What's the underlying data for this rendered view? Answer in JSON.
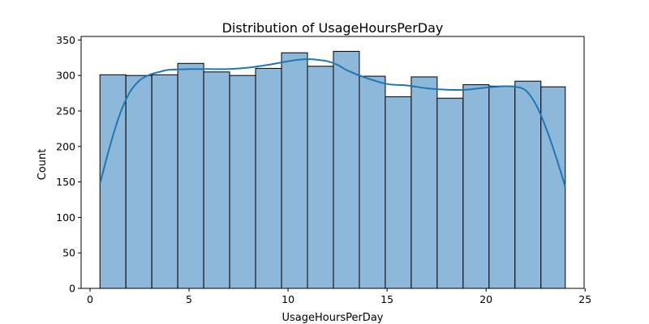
{
  "chart_data": {
    "type": "bar",
    "title": "Distribution of UsageHoursPerDay",
    "xlabel": "UsageHoursPerDay",
    "ylabel": "Count",
    "xlim": [
      -0.45,
      24.95
    ],
    "ylim": [
      0,
      355
    ],
    "xticks": [
      0,
      5,
      10,
      15,
      20,
      25
    ],
    "yticks": [
      0,
      50,
      100,
      150,
      200,
      250,
      300,
      350
    ],
    "bin_edges": [
      0.5,
      1.81,
      3.12,
      4.43,
      5.74,
      7.05,
      8.36,
      9.67,
      10.98,
      12.29,
      13.6,
      14.91,
      16.22,
      17.53,
      18.84,
      20.15,
      21.46,
      22.77,
      24.0
    ],
    "values": [
      301,
      300,
      301,
      317,
      305,
      300,
      310,
      332,
      313,
      334,
      299,
      270,
      298,
      268,
      287,
      285,
      292,
      284
    ],
    "kde": {
      "x": [
        0.5,
        1.0,
        1.5,
        2.0,
        2.5,
        3.0,
        3.5,
        4.0,
        5.0,
        6.0,
        7.0,
        8.0,
        9.0,
        10.0,
        10.5,
        11.0,
        11.5,
        12.0,
        12.5,
        13.0,
        14.0,
        15.0,
        16.0,
        17.0,
        18.0,
        19.0,
        20.0,
        20.5,
        21.0,
        21.5,
        22.0,
        22.5,
        23.0,
        23.5,
        24.0
      ],
      "y": [
        147,
        200,
        245,
        276,
        293,
        301,
        305,
        308,
        309,
        309,
        309,
        311,
        315,
        320,
        322,
        323,
        322,
        320,
        315,
        307,
        296,
        288,
        286,
        282,
        280,
        280,
        283,
        284,
        285,
        284,
        279,
        260,
        228,
        188,
        143
      ]
    },
    "colors": {
      "bar_fill": "#8db8da",
      "bar_edge": "#000000",
      "kde_line": "#1f77b4"
    },
    "grid": false,
    "legend": "none"
  }
}
